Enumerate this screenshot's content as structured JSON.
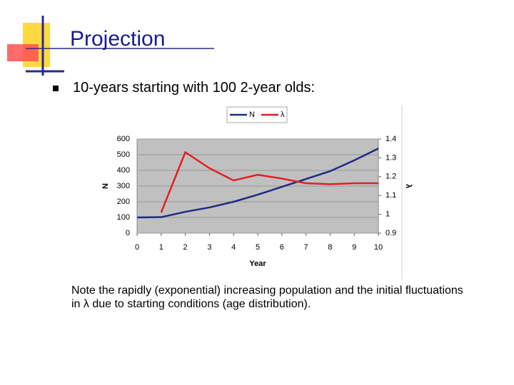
{
  "slide": {
    "title": "Projection",
    "bullet": "10-years starting with 100 2-year olds:",
    "note": "Note the rapidly (exponential) increasing population and the initial fluctuations in λ due to starting conditions (age distribution)."
  },
  "chart_data": {
    "type": "line",
    "x_label": "Year",
    "y_label": "N",
    "y2_label": "λ",
    "x": [
      0,
      1,
      2,
      3,
      4,
      5,
      6,
      7,
      8,
      9,
      10
    ],
    "series": [
      {
        "name": "N",
        "color": "#1f2a80",
        "values": [
          100,
          102,
          136,
          164,
          200,
          245,
          295,
          345,
          395,
          464,
          540
        ]
      },
      {
        "name": "λ",
        "color": "#e02020",
        "axis": "y2",
        "values": [
          null,
          1.01,
          1.33,
          1.245,
          1.18,
          1.21,
          1.19,
          1.165,
          1.16,
          1.165,
          1.165
        ]
      }
    ],
    "xlim": [
      0,
      10
    ],
    "xticks": [
      0,
      1,
      2,
      3,
      4,
      5,
      6,
      7,
      8,
      9,
      10
    ],
    "ylim": [
      0,
      600
    ],
    "yticks": [
      0,
      100,
      200,
      300,
      400,
      500,
      600
    ],
    "y2lim": [
      0.9,
      1.4
    ],
    "y2ticks": [
      0.9,
      1,
      1.1,
      1.2,
      1.3,
      1.4
    ],
    "grid": true,
    "legend": "top"
  }
}
